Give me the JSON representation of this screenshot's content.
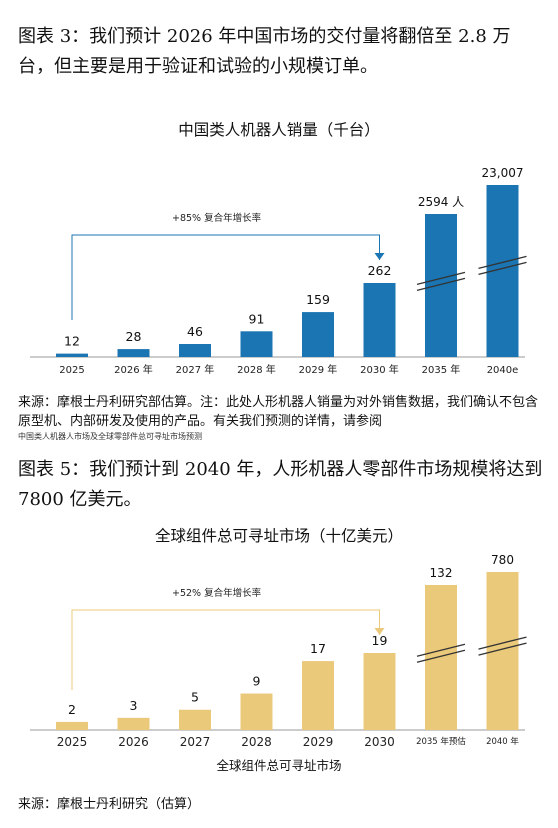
{
  "caption1": "图表 3：我们预计 2026 年中国市场的交付量将翻倍至 2.8 万台，但主要是用于验证和试验的小规模订单。",
  "caption2": "图表 5：我们预计到 2040 年，人形机器人零部件市场规模将达到 7800 亿美元。",
  "source1": "来源：摩根士丹利研究部估算。注：此处人形机器人销量为对外销售数据，我们确认不包含原型机、内部研发及使用的产品。有关我们预测的详情，请参阅",
  "note1": "中国类人机器人市场及全球零部件总可寻址市场预测",
  "source2": "来源：摩根士丹利研究（估算）",
  "colors": {
    "chart1_bar": "#1b75b3",
    "chart2_bar": "#ebc97a",
    "chart1_arrow": "#1b75b3",
    "chart2_arrow": "#ebc97a"
  },
  "chart_data": [
    {
      "type": "bar",
      "title": "中国类人机器人销量（千台）",
      "categories": [
        "2025",
        "2026 年",
        "2027 年",
        "2028 年",
        "2029 年",
        "2030 年",
        "2035 年",
        "2040e"
      ],
      "values": [
        12,
        28,
        46,
        91,
        159,
        262,
        2594,
        23007
      ],
      "value_labels": [
        "12",
        "28",
        "46",
        "91",
        "159",
        "262",
        "2594 人",
        "23,007"
      ],
      "axis_break": true,
      "annotation": "+85% 复合年增长率",
      "grid": false
    },
    {
      "type": "bar",
      "title": "全球组件总可寻址市场（十亿美元）",
      "categories": [
        "2025",
        "2026",
        "2027",
        "2028",
        "2029",
        "2030",
        "2035 年预估",
        "2040 年"
      ],
      "values": [
        2,
        3,
        5,
        9,
        17,
        19,
        132,
        780
      ],
      "value_labels": [
        "2",
        "3",
        "5",
        "9",
        "17",
        "19",
        "132",
        "780"
      ],
      "axis_break": true,
      "annotation": "+52% 复合年增长率",
      "xlabel": "全球组件总可寻址市场",
      "grid": false
    }
  ]
}
